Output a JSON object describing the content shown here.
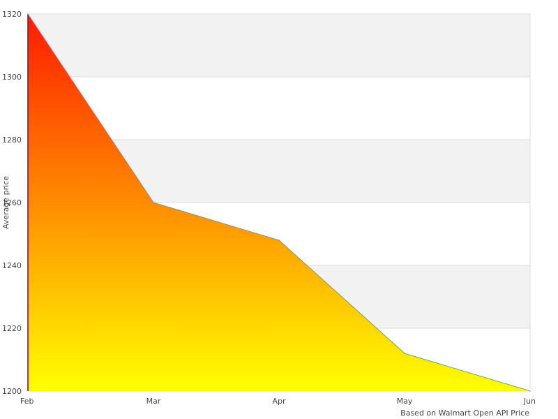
{
  "chart_data": {
    "type": "area",
    "categories": [
      "Feb",
      "Mar",
      "Apr",
      "May",
      "Jun"
    ],
    "series": [
      {
        "values": [
          1320,
          1260,
          1248,
          1212,
          1200
        ]
      }
    ],
    "ylabel": "Average price",
    "xlabel": "",
    "ylim": [
      1200,
      1320
    ],
    "yticks": [
      1200,
      1220,
      1240,
      1260,
      1280,
      1300,
      1320
    ],
    "grid": "alternating horizontal bands",
    "source_note": "Based on Walmart Open API Price",
    "colors": {
      "band": "#f2f2f2",
      "grid_line": "#dddddd",
      "line": "#5b9bd5",
      "fill_top": "#ff1a00",
      "fill_mid": "#ff8c00",
      "fill_bottom": "#ffff00",
      "left_edge": "#aa0000"
    }
  }
}
